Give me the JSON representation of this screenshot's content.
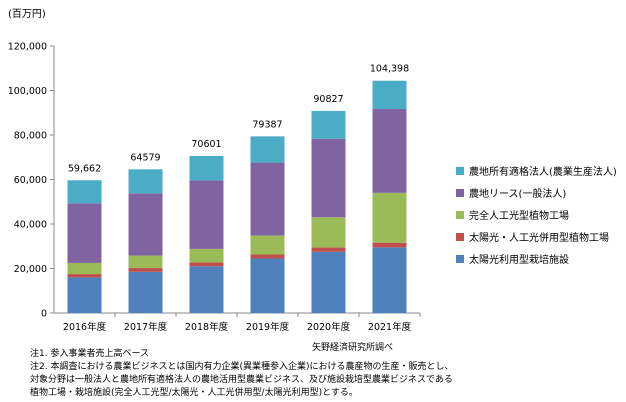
{
  "chart_data": {
    "type": "bar",
    "stacked": true,
    "unit_label": "(百万円)",
    "categories": [
      "2016年度",
      "2017年度",
      "2018年度",
      "2019年度",
      "2020年度",
      "2021年度"
    ],
    "ylim": [
      0,
      120000
    ],
    "yticks": [
      "0",
      "20,000",
      "40,000",
      "60,000",
      "80,000",
      "100,000",
      "120,000"
    ],
    "ytick_values": [
      0,
      20000,
      40000,
      60000,
      80000,
      100000,
      120000
    ],
    "totals": [
      59662,
      64579,
      70601,
      79387,
      90827,
      104398
    ],
    "total_labels": [
      "59,662",
      "64579",
      "70601",
      "79387",
      "90827",
      "104,398"
    ],
    "series": [
      {
        "name": "太陽光利用型栽培施設",
        "color": "#4F81BD",
        "values": [
          16000,
          18500,
          21000,
          24500,
          27500,
          29500
        ]
      },
      {
        "name": "太陽光・人工光併用型植物工場",
        "color": "#C0504D",
        "values": [
          1500,
          1700,
          1800,
          1800,
          1900,
          2100
        ]
      },
      {
        "name": "完全人工光型植物工場",
        "color": "#9BBB59",
        "values": [
          5000,
          5600,
          6000,
          8500,
          13600,
          22400
        ]
      },
      {
        "name": "農地リース(一般法人)",
        "color": "#8064A2",
        "values": [
          26800,
          28000,
          30800,
          32800,
          35300,
          37700
        ]
      },
      {
        "name": "農地所有適格法人(農業生産法人)",
        "color": "#4BACC6",
        "values": [
          10362,
          10779,
          11001,
          11787,
          12527,
          12698
        ]
      }
    ],
    "legend_position": "right"
  },
  "notes": [
    "注1. 参入事業者売上高ベース",
    "注2. 本調査における農業ビジネスとは国内有力企業(異業種参入企業)における農産物の生産・販売とし、",
    "対象分野は一般法人と農地所有適格法人の農地活用型農業ビジネス、及び施設栽培型農業ビジネスである",
    "植物工場・栽培施設(完全人工光型/太陽光・人工光併用型/太陽光利用型)とする。"
  ],
  "source": "矢野経済研究所調べ"
}
